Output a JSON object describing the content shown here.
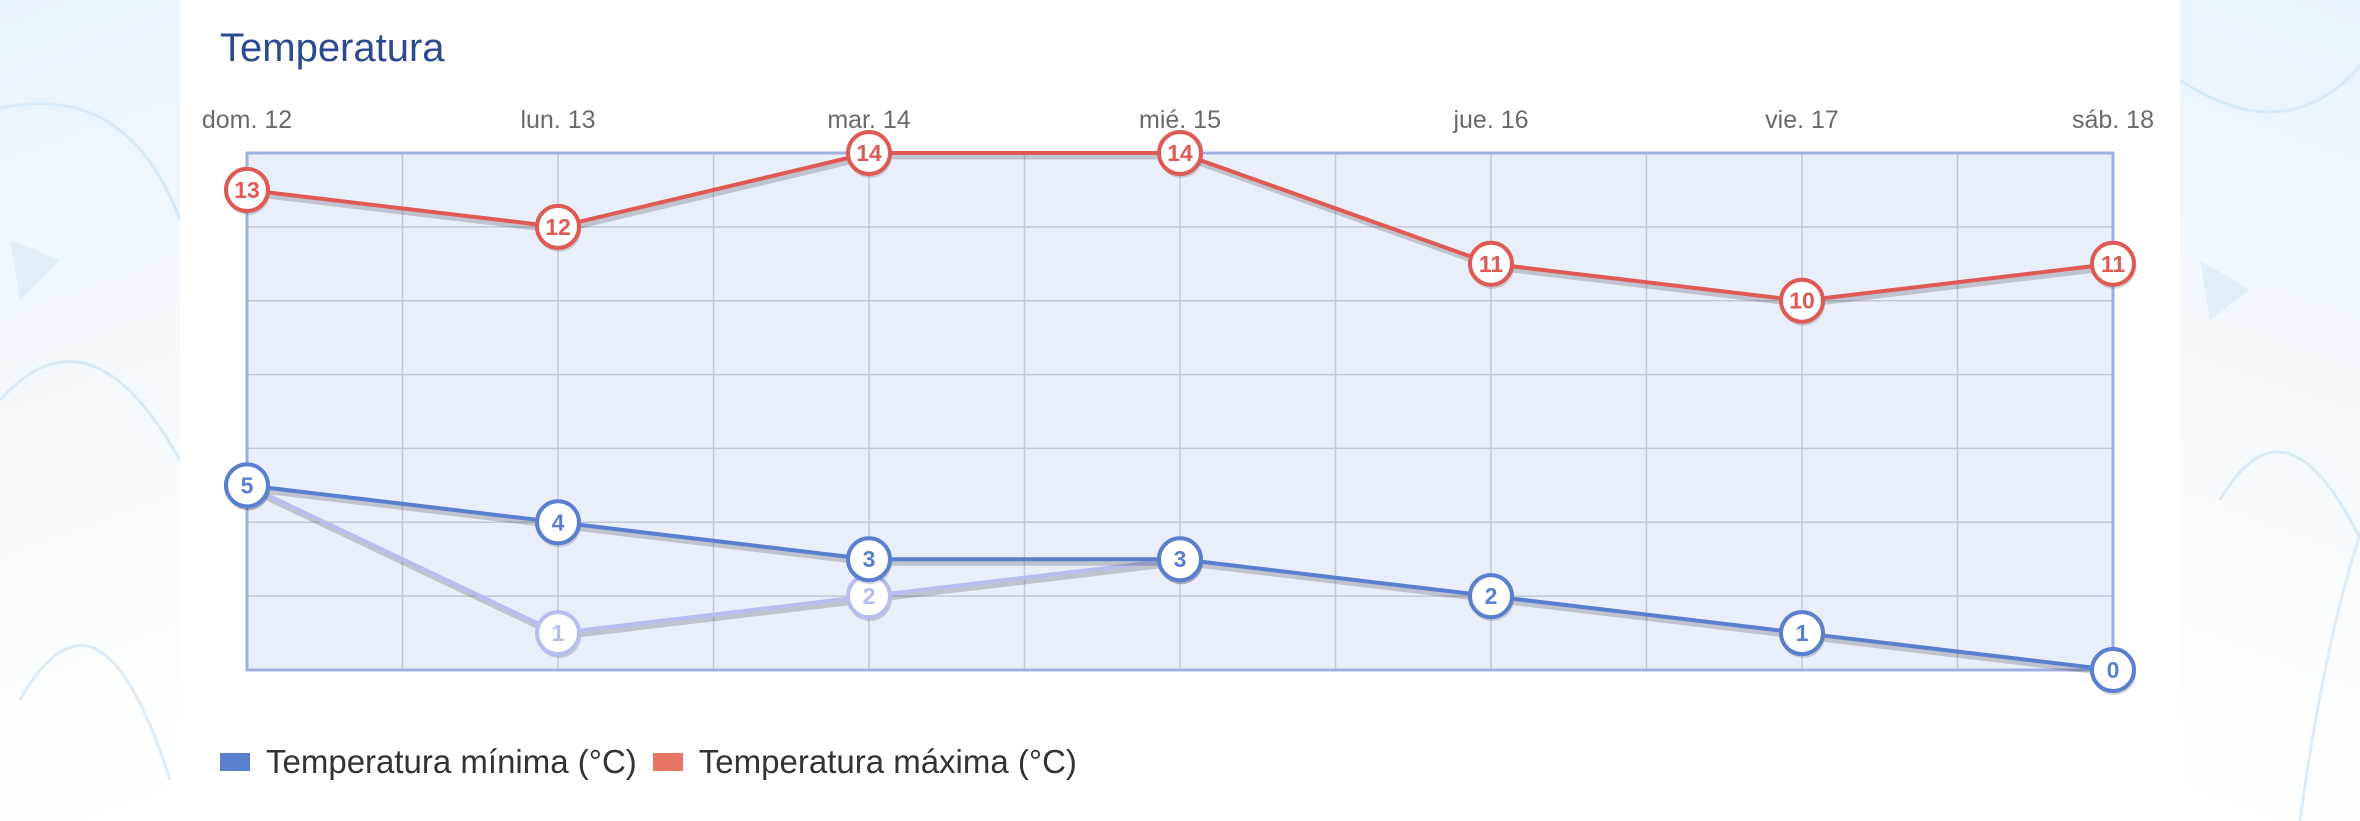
{
  "chart_data": {
    "type": "line",
    "title": "Temperatura",
    "categories": [
      "dom. 12",
      "lun. 13",
      "mar. 14",
      "mié. 15",
      "jue. 16",
      "vie. 17",
      "sáb. 18"
    ],
    "ylim": [
      0,
      14
    ],
    "grid": true,
    "legend_position": "bottom-left",
    "series": [
      {
        "name": "Temperatura mínima (°C)",
        "color": "#5b7fcf",
        "values": [
          5,
          4,
          3,
          3,
          2,
          1,
          0
        ]
      },
      {
        "name": "Temperatura máxima (°C)",
        "color": "#e05a55",
        "values": [
          13,
          12,
          14,
          14,
          11,
          10,
          11
        ]
      },
      {
        "name": "",
        "color": "#b8bdf0",
        "values": [
          5,
          1,
          2,
          3,
          null,
          null,
          null
        ]
      }
    ]
  },
  "legend": {
    "items": [
      {
        "label": "Temperatura mínima (°C)",
        "color": "#5b7fcf"
      },
      {
        "label": "Temperatura máxima (°C)",
        "color": "#e87466"
      }
    ]
  }
}
